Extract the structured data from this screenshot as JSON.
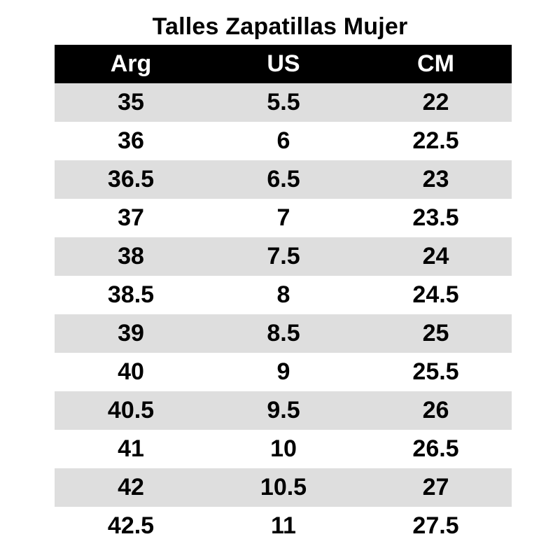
{
  "title": "Talles Zapatillas Mujer",
  "colors": {
    "header_bg": "#000000",
    "header_text": "#ffffff",
    "shaded_row": "#dedede",
    "plain_row": "#ffffff"
  },
  "table": {
    "headers": [
      "Arg",
      "US",
      "CM"
    ],
    "rows": [
      [
        "35",
        "5.5",
        "22"
      ],
      [
        "36",
        "6",
        "22.5"
      ],
      [
        "36.5",
        "6.5",
        "23"
      ],
      [
        "37",
        "7",
        "23.5"
      ],
      [
        "38",
        "7.5",
        "24"
      ],
      [
        "38.5",
        "8",
        "24.5"
      ],
      [
        "39",
        "8.5",
        "25"
      ],
      [
        "40",
        "9",
        "25.5"
      ],
      [
        "40.5",
        "9.5",
        "26"
      ],
      [
        "41",
        "10",
        "26.5"
      ],
      [
        "42",
        "10.5",
        "27"
      ],
      [
        "42.5",
        "11",
        "27.5"
      ]
    ]
  }
}
